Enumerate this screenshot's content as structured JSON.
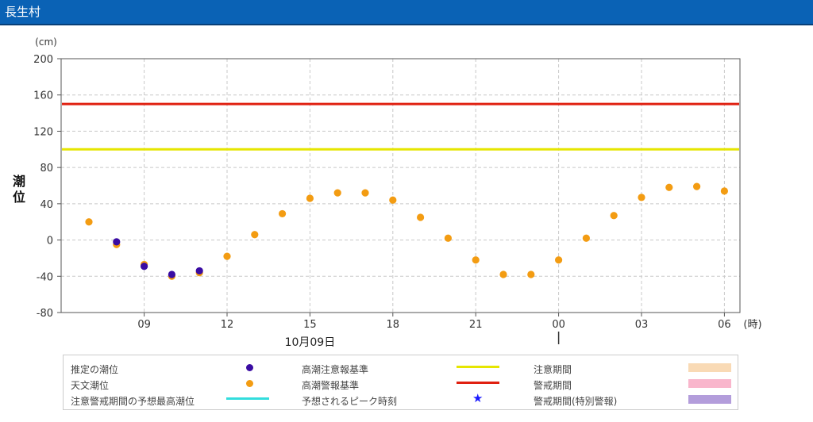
{
  "header": {
    "title": "長生村"
  },
  "colors": {
    "header_bg": "#0a62b5",
    "estimated": "#3a0ca3",
    "astronomical": "#f39c12",
    "caution": "#e6e600",
    "warning": "#e02010",
    "forecast_max": "#33dddd",
    "peak": "#1a1aff",
    "caution_period": "#f9dab5",
    "warning_period": "#f9b6cc",
    "special_warning_period": "#b39ddb"
  },
  "chart_data": {
    "type": "scatter",
    "ylabel": "潮位",
    "yunit": "(cm)",
    "xunit": "(時)",
    "ylim": [
      -80,
      200
    ],
    "yticks": [
      -80,
      -40,
      0,
      40,
      80,
      120,
      160,
      200
    ],
    "xticks": [
      "09",
      "12",
      "15",
      "18",
      "21",
      "00",
      "03",
      "06"
    ],
    "date_label": "10月09日",
    "x_hours": [
      "07",
      "08",
      "09",
      "10",
      "11",
      "12",
      "13",
      "14",
      "15",
      "16",
      "17",
      "18",
      "19",
      "20",
      "21",
      "22",
      "23",
      "00",
      "01",
      "02",
      "03",
      "04",
      "05",
      "06"
    ],
    "grid": true,
    "series": [
      {
        "name": "天文潮位",
        "values": [
          20,
          -5,
          -27,
          -40,
          -36,
          -18,
          6,
          29,
          46,
          52,
          52,
          44,
          25,
          2,
          -22,
          -38,
          -38,
          -22,
          2,
          27,
          47,
          58,
          59,
          54
        ]
      },
      {
        "name": "推定の潮位",
        "values": [
          null,
          -2,
          -29,
          -38,
          -34,
          null,
          null,
          null,
          null,
          null,
          null,
          null,
          null,
          null,
          null,
          null,
          null,
          null,
          null,
          null,
          null,
          null,
          null,
          null
        ]
      }
    ],
    "reference_lines": [
      {
        "name": "高潮注意報基準",
        "value": 100
      },
      {
        "name": "高潮警報基準",
        "value": 150
      }
    ]
  },
  "legend": {
    "estimated": "推定の潮位",
    "astronomical": "天文潮位",
    "forecast_max": "注意警戒期間の予想最高潮位",
    "caution_std": "高潮注意報基準",
    "warning_std": "高潮警報基準",
    "peak": "予想されるピーク時刻",
    "caution_period": "注意期間",
    "warning_period": "警戒期間",
    "special_warning_period": "警戒期間(特別警報)"
  }
}
